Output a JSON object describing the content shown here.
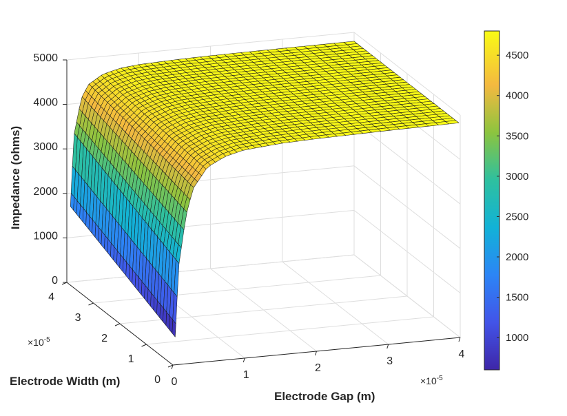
{
  "chart_data": {
    "type": "surface",
    "xlabel": "Electrode Gap (m)",
    "ylabel": "Electrode Width (m)",
    "zlabel": "Impedance (ohms)",
    "x_exponent_label": "×10",
    "x_exponent_power": "-5",
    "y_exponent_label": "×10",
    "y_exponent_power": "-5",
    "xlim": [
      0,
      4
    ],
    "ylim": [
      0,
      4
    ],
    "zlim": [
      0,
      5000
    ],
    "x_ticks": [
      "0",
      "1",
      "2",
      "3",
      "4"
    ],
    "y_ticks": [
      "0",
      "1",
      "2",
      "3",
      "4"
    ],
    "z_ticks": [
      "0",
      "1000",
      "2000",
      "3000",
      "4000",
      "5000"
    ],
    "grid": true,
    "colormap": "parula",
    "colorbar": {
      "clim": [
        600,
        4800
      ],
      "ticks": [
        "1000",
        "1500",
        "2000",
        "2500",
        "3000",
        "3500",
        "4000",
        "4500"
      ],
      "tick_values": [
        1000,
        1500,
        2000,
        2500,
        3000,
        3500,
        4000,
        4500
      ]
    },
    "surface_profile": {
      "description_free": true,
      "x_scale_1e5": [
        0.05,
        0.1,
        0.2,
        0.3,
        0.5,
        0.75,
        1.0,
        1.5,
        2.0,
        3.0,
        4.0
      ],
      "impedance_at_min_width": [
        600,
        2200,
        3300,
        3900,
        4350,
        4550,
        4650,
        4720,
        4750,
        4780,
        4800
      ],
      "impedance_at_max_width": [
        1700,
        3300,
        4100,
        4400,
        4600,
        4700,
        4740,
        4770,
        4785,
        4795,
        4800
      ]
    }
  }
}
